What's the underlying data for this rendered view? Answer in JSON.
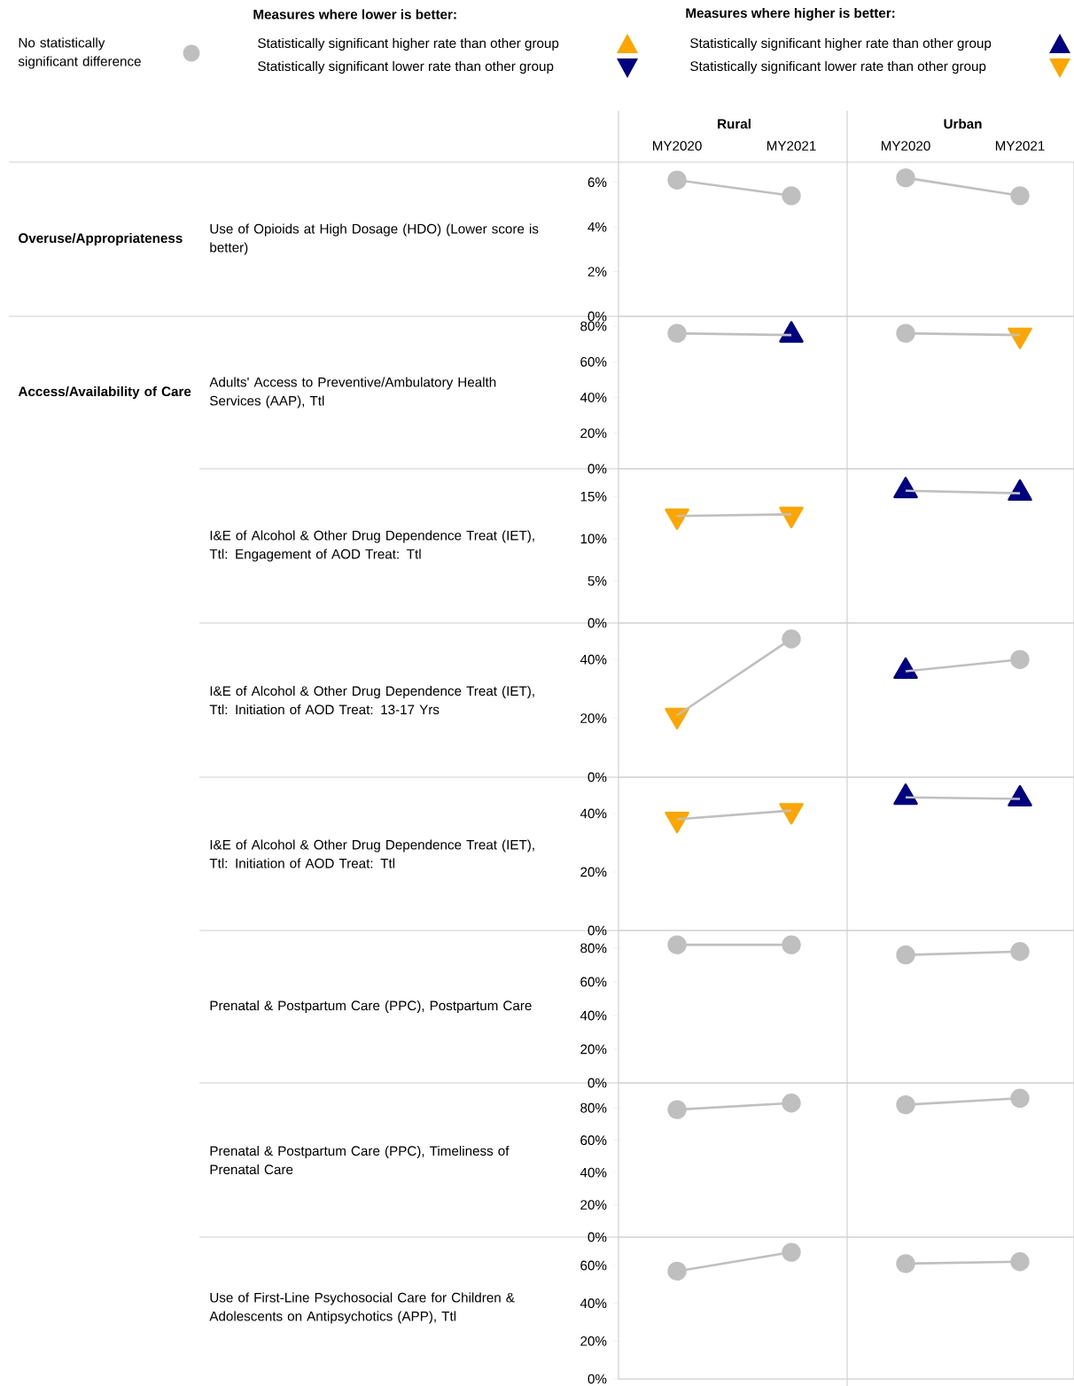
{
  "chart_data": [
    {
      "type": "other",
      "annotations": [
        "No statistically significant difference",
        "Measures where lower is better:",
        "Statistically significant higher rate than other group",
        "Statistically significant lower rate than other group",
        "Measures where higher is better:",
        "Statistically significant higher rate than other group",
        "Statistically significant lower rate than other group"
      ]
    },
    {
      "type": "line",
      "ylabel": "Use of Opioids at High Dosage (HDO) (Lower score is better)",
      "annotations": [
        "Rural",
        "Urban",
        "Overuse/Appropriateness"
      ],
      "categories": [
        "MY2020",
        "MY2021",
        "MY2020",
        "MY2021"
      ],
      "ylim": [
        0,
        6.9
      ],
      "yticks": [
        {
          "value": 0,
          "label": "0%"
        },
        {
          "value": 2,
          "label": "2%"
        },
        {
          "value": 4,
          "label": "4%"
        },
        {
          "value": 6,
          "label": "6%"
        }
      ],
      "series": [
        {
          "type": "line",
          "color": "#bfbfbf",
          "marker": "none",
          "values": [
            6.1,
            5.4,
            null,
            null
          ]
        },
        {
          "type": "line",
          "color": "#bfbfbf",
          "marker": "none",
          "values": [
            null,
            null,
            6.2,
            5.4
          ]
        },
        {
          "type": "scatter",
          "marker": "circle",
          "color": "#bfbfbf",
          "values": [
            6.1,
            5.4,
            6.2,
            5.4
          ]
        }
      ]
    },
    {
      "type": "line",
      "ylabel": "Adults' Access to Preventive/Ambulatory Health Services (AAP), Ttl",
      "annotations": [
        "Access/Availability of Care"
      ],
      "categories": [
        null,
        null,
        null,
        null
      ],
      "tick_labels": "y",
      "ylim": [
        0,
        85.5
      ],
      "yticks": [
        {
          "value": 0,
          "label": "0%"
        },
        {
          "value": 20,
          "label": "20%"
        },
        {
          "value": 40,
          "label": "40%"
        },
        {
          "value": 60,
          "label": "60%"
        },
        {
          "value": 80,
          "label": "80%"
        }
      ],
      "series": [
        {
          "type": "line",
          "color": "#bfbfbf",
          "marker": "none",
          "values": [
            76,
            75,
            null,
            null
          ]
        },
        {
          "type": "line",
          "color": "#bfbfbf",
          "marker": "none",
          "values": [
            null,
            null,
            76,
            75
          ]
        },
        {
          "type": "scatter",
          "marker": "circle",
          "color": "#bfbfbf",
          "values": [
            76,
            null,
            76,
            null
          ]
        },
        {
          "type": "scatter",
          "marker": "triangle",
          "color": "#000080",
          "values": [
            null,
            75,
            null,
            null
          ]
        },
        {
          "type": "scatter",
          "marker": "triangle-down",
          "color": "#ffa500",
          "values": [
            null,
            null,
            null,
            75
          ]
        }
      ]
    },
    {
      "type": "line",
      "ylabel": "I&E of Alcohol & Other Drug Dependence Treat (IET), Ttl: Engagement of AOD Treat: Ttl",
      "categories": [
        null,
        null,
        null,
        null
      ],
      "tick_labels": "y",
      "ylim": [
        0,
        18.3
      ],
      "yticks": [
        {
          "value": 0,
          "label": "0%"
        },
        {
          "value": 5,
          "label": "5%"
        },
        {
          "value": 10,
          "label": "10%"
        },
        {
          "value": 15,
          "label": "15%"
        }
      ],
      "series": [
        {
          "type": "line",
          "color": "#bfbfbf",
          "marker": "none",
          "values": [
            12.7,
            12.9,
            null,
            null
          ]
        },
        {
          "type": "line",
          "color": "#bfbfbf",
          "marker": "none",
          "values": [
            null,
            null,
            15.7,
            15.4
          ]
        },
        {
          "type": "scatter",
          "marker": "triangle-down",
          "color": "#ffa500",
          "values": [
            12.7,
            12.9,
            null,
            null
          ]
        },
        {
          "type": "scatter",
          "marker": "triangle",
          "color": "#000080",
          "values": [
            null,
            null,
            15.7,
            15.4
          ]
        }
      ]
    },
    {
      "type": "line",
      "ylabel": "I&E of Alcohol & Other Drug Dependence Treat (IET), Ttl: Initiation of AOD Treat: 13-17 Yrs",
      "categories": [
        null,
        null,
        null,
        null
      ],
      "tick_labels": "y",
      "ylim": [
        0,
        52.4
      ],
      "yticks": [
        {
          "value": 0,
          "label": "0%"
        },
        {
          "value": 20,
          "label": "20%"
        },
        {
          "value": 40,
          "label": "40%"
        }
      ],
      "series": [
        {
          "type": "line",
          "color": "#bfbfbf",
          "marker": "none",
          "values": [
            21,
            47,
            null,
            null
          ]
        },
        {
          "type": "line",
          "color": "#bfbfbf",
          "marker": "none",
          "values": [
            null,
            null,
            36,
            40
          ]
        },
        {
          "type": "scatter",
          "marker": "triangle-down",
          "color": "#ffa500",
          "values": [
            21,
            null,
            null,
            null
          ]
        },
        {
          "type": "scatter",
          "marker": "circle",
          "color": "#bfbfbf",
          "values": [
            null,
            47,
            null,
            40
          ]
        },
        {
          "type": "scatter",
          "marker": "triangle",
          "color": "#000080",
          "values": [
            null,
            null,
            36,
            null
          ]
        }
      ]
    },
    {
      "type": "line",
      "ylabel": "I&E of Alcohol & Other Drug Dependence Treat (IET), Ttl: Initiation of AOD Treat: Ttl",
      "categories": [
        null,
        null,
        null,
        null
      ],
      "tick_labels": "y",
      "ylim": [
        0,
        52.4
      ],
      "yticks": [
        {
          "value": 0,
          "label": "0%"
        },
        {
          "value": 20,
          "label": "20%"
        },
        {
          "value": 40,
          "label": "40%"
        }
      ],
      "series": [
        {
          "type": "line",
          "color": "#bfbfbf",
          "marker": "none",
          "values": [
            38,
            41,
            null,
            null
          ]
        },
        {
          "type": "line",
          "color": "#bfbfbf",
          "marker": "none",
          "values": [
            null,
            null,
            45.5,
            45
          ]
        },
        {
          "type": "scatter",
          "marker": "triangle-down",
          "color": "#ffa500",
          "values": [
            38,
            41,
            null,
            null
          ]
        },
        {
          "type": "scatter",
          "marker": "triangle",
          "color": "#000080",
          "values": [
            null,
            null,
            45.5,
            45
          ]
        }
      ]
    },
    {
      "type": "line",
      "ylabel": "Prenatal & Postpartum Care (PPC), Postpartum Care",
      "categories": [
        null,
        null,
        null,
        null
      ],
      "tick_labels": "y",
      "ylim": [
        0,
        90.5
      ],
      "yticks": [
        {
          "value": 0,
          "label": "0%"
        },
        {
          "value": 20,
          "label": "20%"
        },
        {
          "value": 40,
          "label": "40%"
        },
        {
          "value": 60,
          "label": "60%"
        },
        {
          "value": 80,
          "label": "80%"
        }
      ],
      "series": [
        {
          "type": "line",
          "color": "#bfbfbf",
          "marker": "none",
          "values": [
            82,
            82,
            null,
            null
          ]
        },
        {
          "type": "line",
          "color": "#bfbfbf",
          "marker": "none",
          "values": [
            null,
            null,
            76,
            78
          ]
        },
        {
          "type": "scatter",
          "marker": "circle",
          "color": "#bfbfbf",
          "values": [
            82,
            82,
            76,
            78
          ]
        }
      ]
    },
    {
      "type": "line",
      "ylabel": "Prenatal & Postpartum Care (PPC), Timeliness of Prenatal Care",
      "categories": [
        null,
        null,
        null,
        null
      ],
      "tick_labels": "y",
      "ylim": [
        0,
        95.5
      ],
      "yticks": [
        {
          "value": 0,
          "label": "0%"
        },
        {
          "value": 20,
          "label": "20%"
        },
        {
          "value": 40,
          "label": "40%"
        },
        {
          "value": 60,
          "label": "60%"
        },
        {
          "value": 80,
          "label": "80%"
        }
      ],
      "series": [
        {
          "type": "line",
          "color": "#bfbfbf",
          "marker": "none",
          "values": [
            79,
            83,
            null,
            null
          ]
        },
        {
          "type": "line",
          "color": "#bfbfbf",
          "marker": "none",
          "values": [
            null,
            null,
            82,
            86
          ]
        },
        {
          "type": "scatter",
          "marker": "circle",
          "color": "#bfbfbf",
          "values": [
            79,
            83,
            82,
            86
          ]
        }
      ]
    },
    {
      "type": "line",
      "ylabel": "Use of First-Line Psychosocial Care for Children & Adolescents on Antipsychotics (APP), Ttl",
      "categories": [
        null,
        null,
        null,
        null
      ],
      "tick_labels": "y",
      "ylim": [
        0,
        75
      ],
      "yticks": [
        {
          "value": 0,
          "label": "0%"
        },
        {
          "value": 20,
          "label": "20%"
        },
        {
          "value": 40,
          "label": "40%"
        },
        {
          "value": 60,
          "label": "60%"
        }
      ],
      "series": [
        {
          "type": "line",
          "color": "#bfbfbf",
          "marker": "none",
          "values": [
            57,
            67,
            null,
            null
          ]
        },
        {
          "type": "line",
          "color": "#bfbfbf",
          "marker": "none",
          "values": [
            null,
            null,
            61,
            62
          ]
        },
        {
          "type": "scatter",
          "marker": "circle",
          "color": "#bfbfbf",
          "values": [
            57,
            67,
            61,
            62
          ]
        }
      ]
    }
  ]
}
